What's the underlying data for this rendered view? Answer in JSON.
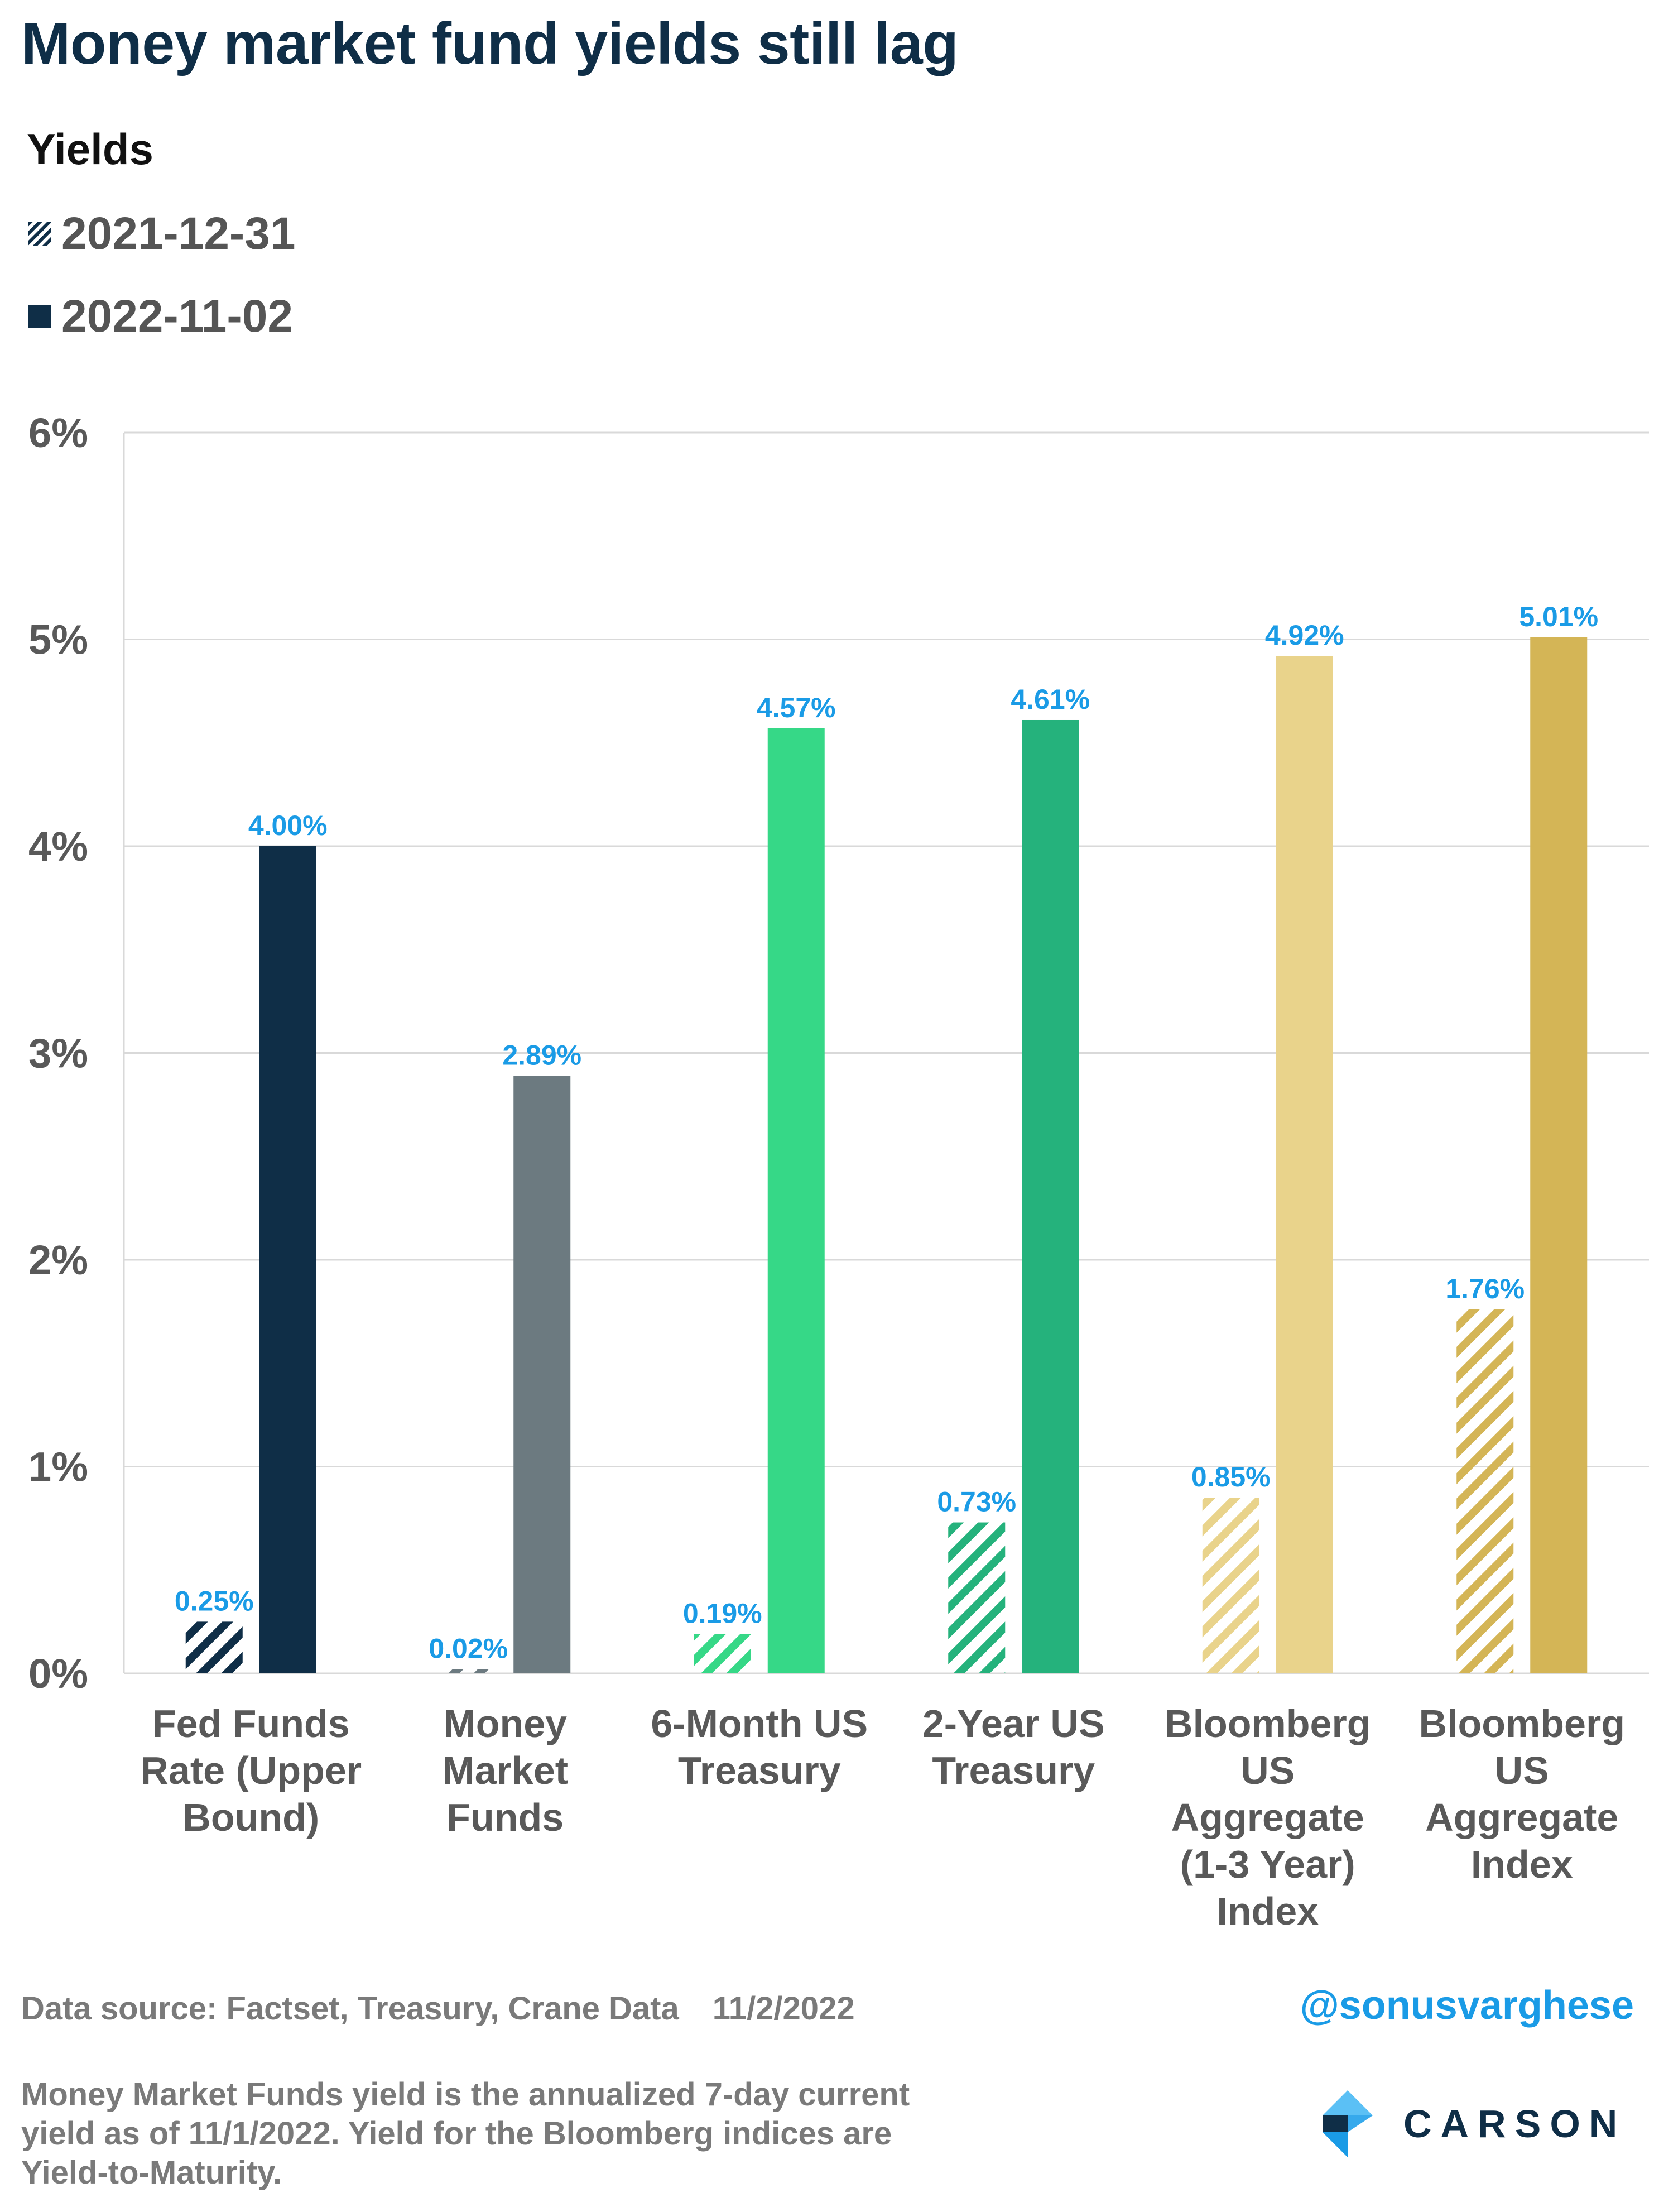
{
  "title": "Money market fund yields still lag",
  "subtitle": "Yields",
  "legend": [
    {
      "label": "2021-12-31",
      "style": "hatched"
    },
    {
      "label": "2022-11-02",
      "style": "solid"
    }
  ],
  "colors": {
    "title": "#0f2e47",
    "axis_text": "#595959",
    "value_label": "#1a9be6",
    "grid": "#d9d9d9"
  },
  "chart_data": {
    "type": "bar",
    "categories": [
      [
        "Fed Funds",
        "Rate (Upper",
        "Bound)"
      ],
      [
        "Money",
        "Market",
        "Funds"
      ],
      [
        "6-Month US",
        "Treasury"
      ],
      [
        "2-Year US",
        "Treasury"
      ],
      [
        "Bloomberg",
        "US",
        "Aggregate",
        "(1-3 Year)",
        "Index"
      ],
      [
        "Bloomberg",
        "US",
        "Aggregate",
        "Index"
      ]
    ],
    "series": [
      {
        "name": "2021-12-31",
        "style": "hatched",
        "values": [
          0.25,
          0.02,
          0.19,
          0.73,
          0.85,
          1.76
        ],
        "labels": [
          "0.25%",
          "0.02%",
          "0.19%",
          "0.73%",
          "0.85%",
          "1.76%"
        ]
      },
      {
        "name": "2022-11-02",
        "style": "solid",
        "values": [
          4.0,
          2.89,
          4.57,
          4.61,
          4.92,
          5.01
        ],
        "labels": [
          "4.00%",
          "2.89%",
          "4.57%",
          "4.61%",
          "4.92%",
          "5.01%"
        ]
      }
    ],
    "bar_colors": [
      "#0f2e47",
      "#6c7a80",
      "#36d887",
      "#25b27c",
      "#e9d38b",
      "#d4b556"
    ],
    "ylim": [
      0,
      6
    ],
    "yticks": [
      "0%",
      "1%",
      "2%",
      "3%",
      "4%",
      "5%",
      "6%"
    ],
    "grid": true
  },
  "footer": {
    "source": "Data source: Factset, Treasury, Crane Data",
    "date": "11/2/2022",
    "handle": "@sonusvarghese",
    "note": "Money Market Funds yield is the annualized 7-day current yield as of 11/1/2022. Yield for the Bloomberg indices are Yield-to-Maturity.",
    "logo_text": "CARSON"
  }
}
